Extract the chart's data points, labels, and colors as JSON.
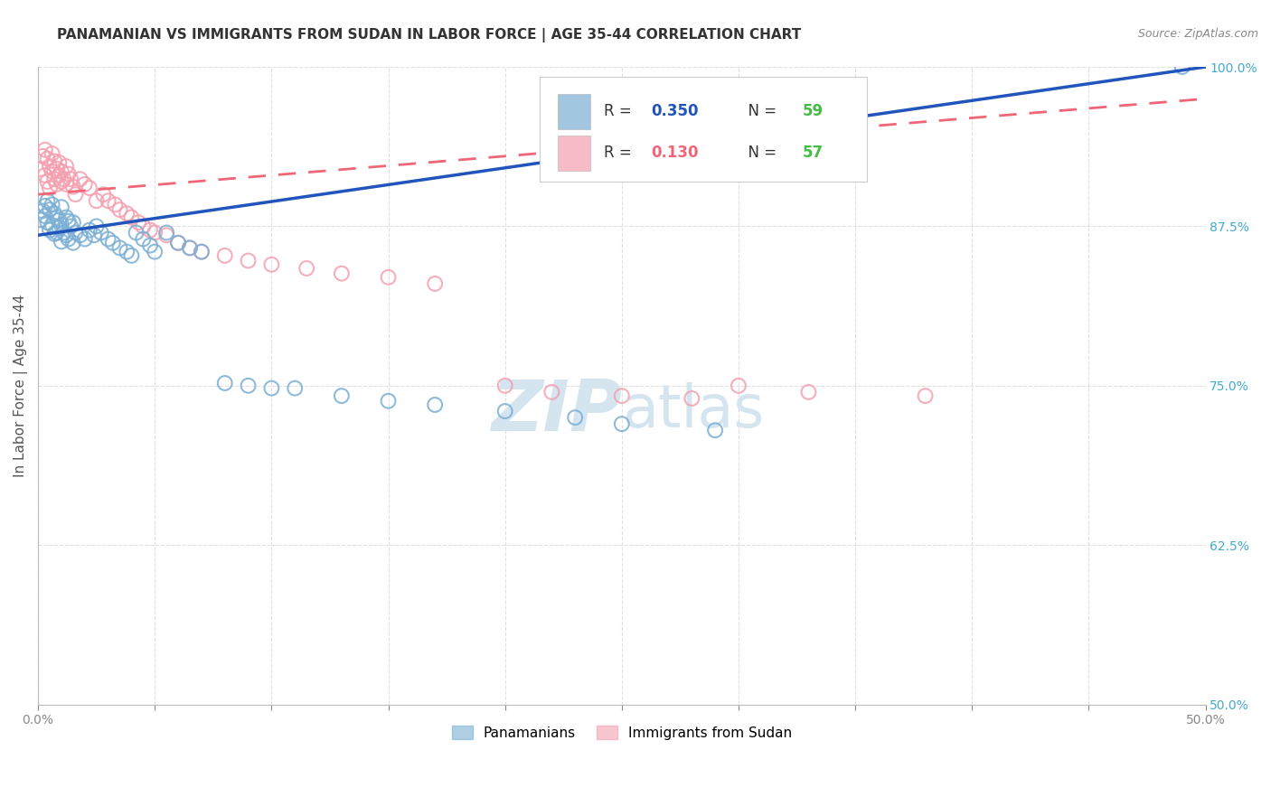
{
  "title": "PANAMANIAN VS IMMIGRANTS FROM SUDAN IN LABOR FORCE | AGE 35-44 CORRELATION CHART",
  "source": "Source: ZipAtlas.com",
  "ylabel": "In Labor Force | Age 35-44",
  "xlim": [
    0.0,
    0.5
  ],
  "ylim": [
    0.5,
    1.0
  ],
  "xtick_positions": [
    0.0,
    0.05,
    0.1,
    0.15,
    0.2,
    0.25,
    0.3,
    0.35,
    0.4,
    0.45,
    0.5
  ],
  "xtick_labels": [
    "0.0%",
    "",
    "",
    "",
    "",
    "",
    "",
    "",
    "",
    "",
    "50.0%"
  ],
  "ytick_positions": [
    0.5,
    0.625,
    0.75,
    0.875,
    1.0
  ],
  "ytick_labels": [
    "50.0%",
    "62.5%",
    "75.0%",
    "87.5%",
    "100.0%"
  ],
  "legend_r_blue": "0.350",
  "legend_n_blue": "59",
  "legend_r_pink": "0.130",
  "legend_n_pink": "57",
  "blue_scatter_color": "#7BAFD4",
  "pink_scatter_color": "#F4A0B0",
  "blue_line_color": "#2255BB",
  "pink_line_color": "#EE6677",
  "watermark_color": "#D5E5F0",
  "title_color": "#333333",
  "source_color": "#888888",
  "ylabel_color": "#555555",
  "ytick_color": "#44AACC",
  "xtick_color": "#888888",
  "grid_color": "#DDDDDD",
  "legend_border_color": "#CCCCCC",
  "background": "#FFFFFF",
  "blue_x": [
    0.001,
    0.002,
    0.003,
    0.003,
    0.004,
    0.004,
    0.005,
    0.005,
    0.006,
    0.006,
    0.007,
    0.007,
    0.008,
    0.008,
    0.009,
    0.009,
    0.01,
    0.01,
    0.01,
    0.011,
    0.012,
    0.012,
    0.013,
    0.013,
    0.014,
    0.015,
    0.015,
    0.016,
    0.018,
    0.02,
    0.022,
    0.024,
    0.025,
    0.027,
    0.03,
    0.032,
    0.035,
    0.038,
    0.04,
    0.042,
    0.045,
    0.048,
    0.05,
    0.055,
    0.06,
    0.065,
    0.07,
    0.08,
    0.09,
    0.1,
    0.11,
    0.13,
    0.15,
    0.17,
    0.2,
    0.23,
    0.25,
    0.29,
    0.49
  ],
  "blue_y": [
    0.88,
    0.887,
    0.883,
    0.891,
    0.878,
    0.895,
    0.872,
    0.888,
    0.876,
    0.892,
    0.869,
    0.885,
    0.87,
    0.882,
    0.874,
    0.88,
    0.863,
    0.876,
    0.89,
    0.87,
    0.868,
    0.882,
    0.865,
    0.879,
    0.875,
    0.862,
    0.878,
    0.87,
    0.868,
    0.865,
    0.872,
    0.868,
    0.875,
    0.87,
    0.865,
    0.862,
    0.858,
    0.855,
    0.852,
    0.87,
    0.865,
    0.86,
    0.855,
    0.87,
    0.862,
    0.858,
    0.855,
    0.752,
    0.75,
    0.748,
    0.748,
    0.742,
    0.738,
    0.735,
    0.73,
    0.725,
    0.72,
    0.715,
    1.0
  ],
  "pink_x": [
    0.001,
    0.002,
    0.003,
    0.003,
    0.004,
    0.004,
    0.005,
    0.005,
    0.006,
    0.006,
    0.007,
    0.007,
    0.008,
    0.008,
    0.009,
    0.009,
    0.01,
    0.01,
    0.011,
    0.012,
    0.012,
    0.013,
    0.014,
    0.015,
    0.016,
    0.018,
    0.02,
    0.022,
    0.025,
    0.028,
    0.03,
    0.033,
    0.035,
    0.038,
    0.04,
    0.043,
    0.045,
    0.048,
    0.05,
    0.055,
    0.06,
    0.065,
    0.07,
    0.08,
    0.09,
    0.1,
    0.115,
    0.13,
    0.15,
    0.17,
    0.2,
    0.22,
    0.25,
    0.28,
    0.3,
    0.33,
    0.38
  ],
  "pink_y": [
    0.92,
    0.93,
    0.915,
    0.935,
    0.91,
    0.928,
    0.905,
    0.922,
    0.918,
    0.932,
    0.912,
    0.926,
    0.908,
    0.92,
    0.915,
    0.925,
    0.91,
    0.918,
    0.912,
    0.908,
    0.922,
    0.916,
    0.912,
    0.906,
    0.9,
    0.912,
    0.908,
    0.905,
    0.895,
    0.9,
    0.895,
    0.892,
    0.888,
    0.885,
    0.882,
    0.878,
    0.875,
    0.872,
    0.87,
    0.868,
    0.862,
    0.858,
    0.855,
    0.852,
    0.848,
    0.845,
    0.842,
    0.838,
    0.835,
    0.83,
    0.75,
    0.745,
    0.742,
    0.74,
    0.75,
    0.745,
    0.742
  ],
  "blue_trend": [
    0.0,
    0.5,
    0.868,
    1.0
  ],
  "pink_trend": [
    0.0,
    0.5,
    0.9,
    0.975
  ],
  "title_fontsize": 11,
  "ylabel_fontsize": 11,
  "tick_fontsize": 10,
  "legend_fontsize": 12,
  "watermark_fontsize": 52
}
